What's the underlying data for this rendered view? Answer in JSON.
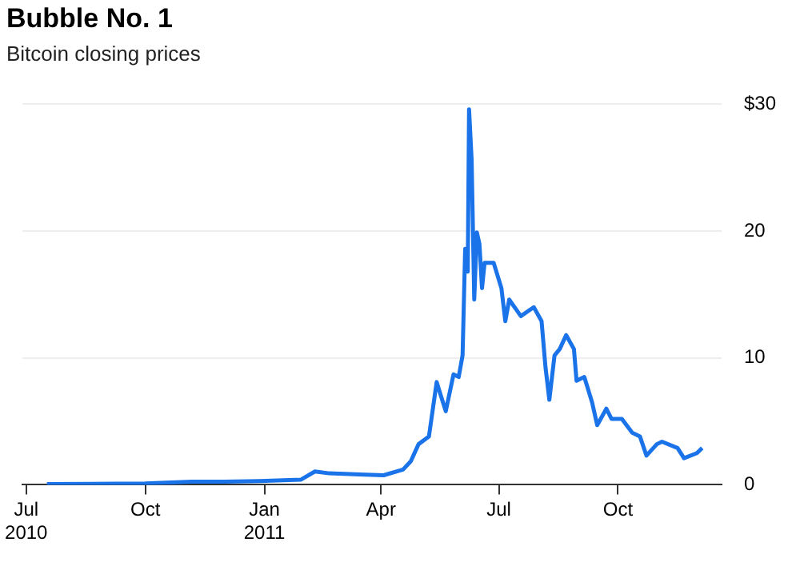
{
  "chart_data": {
    "type": "line",
    "title": "Bubble No. 1",
    "subtitle": "Bitcoin closing prices",
    "x": [
      "2010-07-17",
      "2010-08-20",
      "2010-10-01",
      "2010-11-06",
      "2010-12-01",
      "2010-12-28",
      "2011-01-29",
      "2011-02-09",
      "2011-02-20",
      "2011-03-20",
      "2011-04-03",
      "2011-04-18",
      "2011-04-24",
      "2011-04-30",
      "2011-05-08",
      "2011-05-14",
      "2011-05-17",
      "2011-05-21",
      "2011-05-27",
      "2011-05-31",
      "2011-06-03",
      "2011-06-05",
      "2011-06-07",
      "2011-06-08",
      "2011-06-10",
      "2011-06-12",
      "2011-06-14",
      "2011-06-16",
      "2011-06-18",
      "2011-06-20",
      "2011-06-27",
      "2011-07-03",
      "2011-07-06",
      "2011-07-09",
      "2011-07-18",
      "2011-07-28",
      "2011-08-03",
      "2011-08-06",
      "2011-08-09",
      "2011-08-13",
      "2011-08-17",
      "2011-08-22",
      "2011-08-28",
      "2011-08-30",
      "2011-09-05",
      "2011-09-11",
      "2011-09-15",
      "2011-09-22",
      "2011-09-26",
      "2011-10-04",
      "2011-10-12",
      "2011-10-18",
      "2011-10-23",
      "2011-10-31",
      "2011-11-04",
      "2011-11-16",
      "2011-11-21",
      "2011-12-01",
      "2011-12-05"
    ],
    "series": [
      {
        "color": "#1a73e8",
        "values": [
          0.06,
          0.07,
          0.1,
          0.25,
          0.25,
          0.3,
          0.4,
          1.05,
          0.9,
          0.8,
          0.75,
          1.2,
          1.85,
          3.2,
          3.8,
          8.1,
          7.1,
          5.8,
          8.7,
          8.5,
          10.2,
          18.6,
          16.8,
          29.6,
          25.6,
          14.6,
          19.9,
          19.0,
          15.5,
          17.5,
          17.5,
          15.5,
          12.9,
          14.6,
          13.3,
          14.0,
          12.9,
          9.3,
          6.7,
          10.2,
          10.7,
          11.8,
          10.7,
          8.2,
          8.5,
          6.5,
          4.7,
          6.0,
          5.2,
          5.2,
          4.1,
          3.8,
          2.3,
          3.2,
          3.4,
          2.9,
          2.1,
          2.5,
          2.9
        ]
      }
    ],
    "xlim": [
      "2010-06-28",
      "2011-12-20"
    ],
    "xticks": [
      {
        "value": "2010-07-01",
        "label": "Jul 2010"
      },
      {
        "value": "2010-10-01",
        "label": "Oct"
      },
      {
        "value": "2011-01-01",
        "label": "Jan 2011"
      },
      {
        "value": "2011-04-01",
        "label": "Apr"
      },
      {
        "value": "2011-07-01",
        "label": "Jul"
      },
      {
        "value": "2011-10-01",
        "label": "Oct"
      }
    ],
    "ylim": [
      0,
      30
    ],
    "yticks": [
      0,
      10,
      20,
      {
        "value": 30,
        "label": "$30"
      }
    ],
    "grid": "y",
    "legend": false,
    "marker": "none",
    "line_style": "solid"
  }
}
